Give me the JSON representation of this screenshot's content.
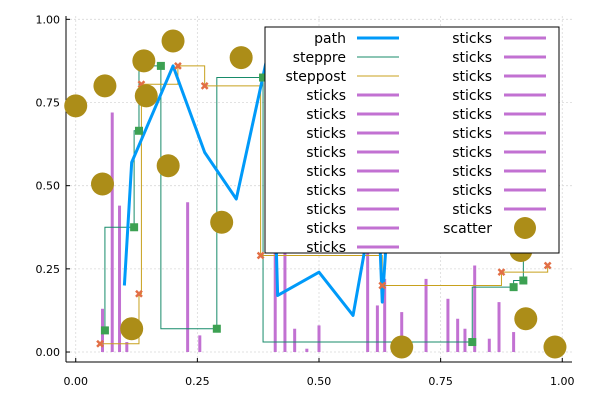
{
  "chart_data": {
    "type": "line",
    "xlim": [
      -0.02,
      1.02
    ],
    "ylim": [
      -0.03,
      1.01
    ],
    "xticks": [
      0.0,
      0.25,
      0.5,
      0.75,
      1.0
    ],
    "yticks": [
      0.0,
      0.25,
      0.5,
      0.75,
      1.0
    ],
    "xtick_labels": [
      "0.00",
      "0.25",
      "0.50",
      "0.75",
      "1.00"
    ],
    "ytick_labels": [
      "0.00",
      "0.25",
      "0.50",
      "0.75",
      "1.00"
    ],
    "grid": true,
    "legend": {
      "placement": "top-right",
      "columns": 2,
      "entries": [
        "path",
        "steppre",
        "steppost",
        "sticks",
        "sticks",
        "sticks",
        "sticks",
        "sticks",
        "sticks",
        "sticks",
        "sticks",
        "sticks",
        "sticks",
        "sticks",
        "sticks",
        "sticks",
        "sticks",
        "sticks",
        "sticks",
        "sticks",
        "sticks",
        "sticks",
        "scatter"
      ]
    },
    "colors": {
      "path": "#009af9",
      "steppre": "#178b6a",
      "steppre_marker": "#3ca152",
      "steppost": "#c8a11d",
      "steppost_marker": "#e26f46",
      "sticks": "#c271d2",
      "scatter": "#ac8d18"
    },
    "series": [
      {
        "name": "path",
        "kind": "line",
        "x": [
          0.1,
          0.115,
          0.2,
          0.265,
          0.33,
          0.4,
          0.415,
          0.5,
          0.57,
          0.62,
          0.63,
          0.645,
          0.72,
          0.78,
          0.82,
          0.85
        ],
        "y": [
          0.2,
          0.57,
          0.86,
          0.6,
          0.46,
          0.93,
          0.17,
          0.24,
          0.11,
          0.52,
          0.15,
          0.48,
          0.74,
          0.57,
          0.82,
          0.74
        ]
      },
      {
        "name": "steppre",
        "kind": "steppre",
        "x": [
          0.06,
          0.12,
          0.13,
          0.175,
          0.29,
          0.385,
          0.815,
          0.9,
          0.92,
          0.945
        ],
        "y": [
          0.065,
          0.375,
          0.665,
          0.86,
          0.07,
          0.825,
          0.03,
          0.195,
          0.215,
          0.91
        ]
      },
      {
        "name": "steppost",
        "kind": "steppost",
        "x": [
          0.05,
          0.13,
          0.135,
          0.21,
          0.265,
          0.38,
          0.63,
          0.875,
          0.97
        ],
        "y": [
          0.025,
          0.175,
          0.805,
          0.86,
          0.8,
          0.29,
          0.2,
          0.24,
          0.26
        ]
      },
      {
        "name": "sticks",
        "kind": "sticks",
        "x": [
          0.055,
          0.075,
          0.09,
          0.105,
          0.23,
          0.255,
          0.41,
          0.43,
          0.45,
          0.475,
          0.5,
          0.6,
          0.62,
          0.635,
          0.67,
          0.72,
          0.765,
          0.785,
          0.8,
          0.82,
          0.85,
          0.87,
          0.9
        ],
        "y": [
          0.13,
          0.72,
          0.44,
          0.03,
          0.45,
          0.05,
          0.43,
          0.3,
          0.07,
          0.01,
          0.08,
          0.3,
          0.14,
          0.22,
          0.12,
          0.22,
          0.16,
          0.1,
          0.07,
          0.26,
          0.04,
          0.15,
          0.06
        ]
      },
      {
        "name": "scatter",
        "kind": "scatter",
        "x": [
          0.0,
          0.06,
          0.055,
          0.115,
          0.14,
          0.145,
          0.19,
          0.2,
          0.3,
          0.34,
          0.67,
          0.915,
          0.92,
          0.925,
          0.985
        ],
        "y": [
          0.74,
          0.8,
          0.505,
          0.07,
          0.875,
          0.77,
          0.56,
          0.935,
          0.39,
          0.885,
          0.015,
          0.305,
          0.33,
          0.1,
          0.015
        ]
      }
    ]
  }
}
